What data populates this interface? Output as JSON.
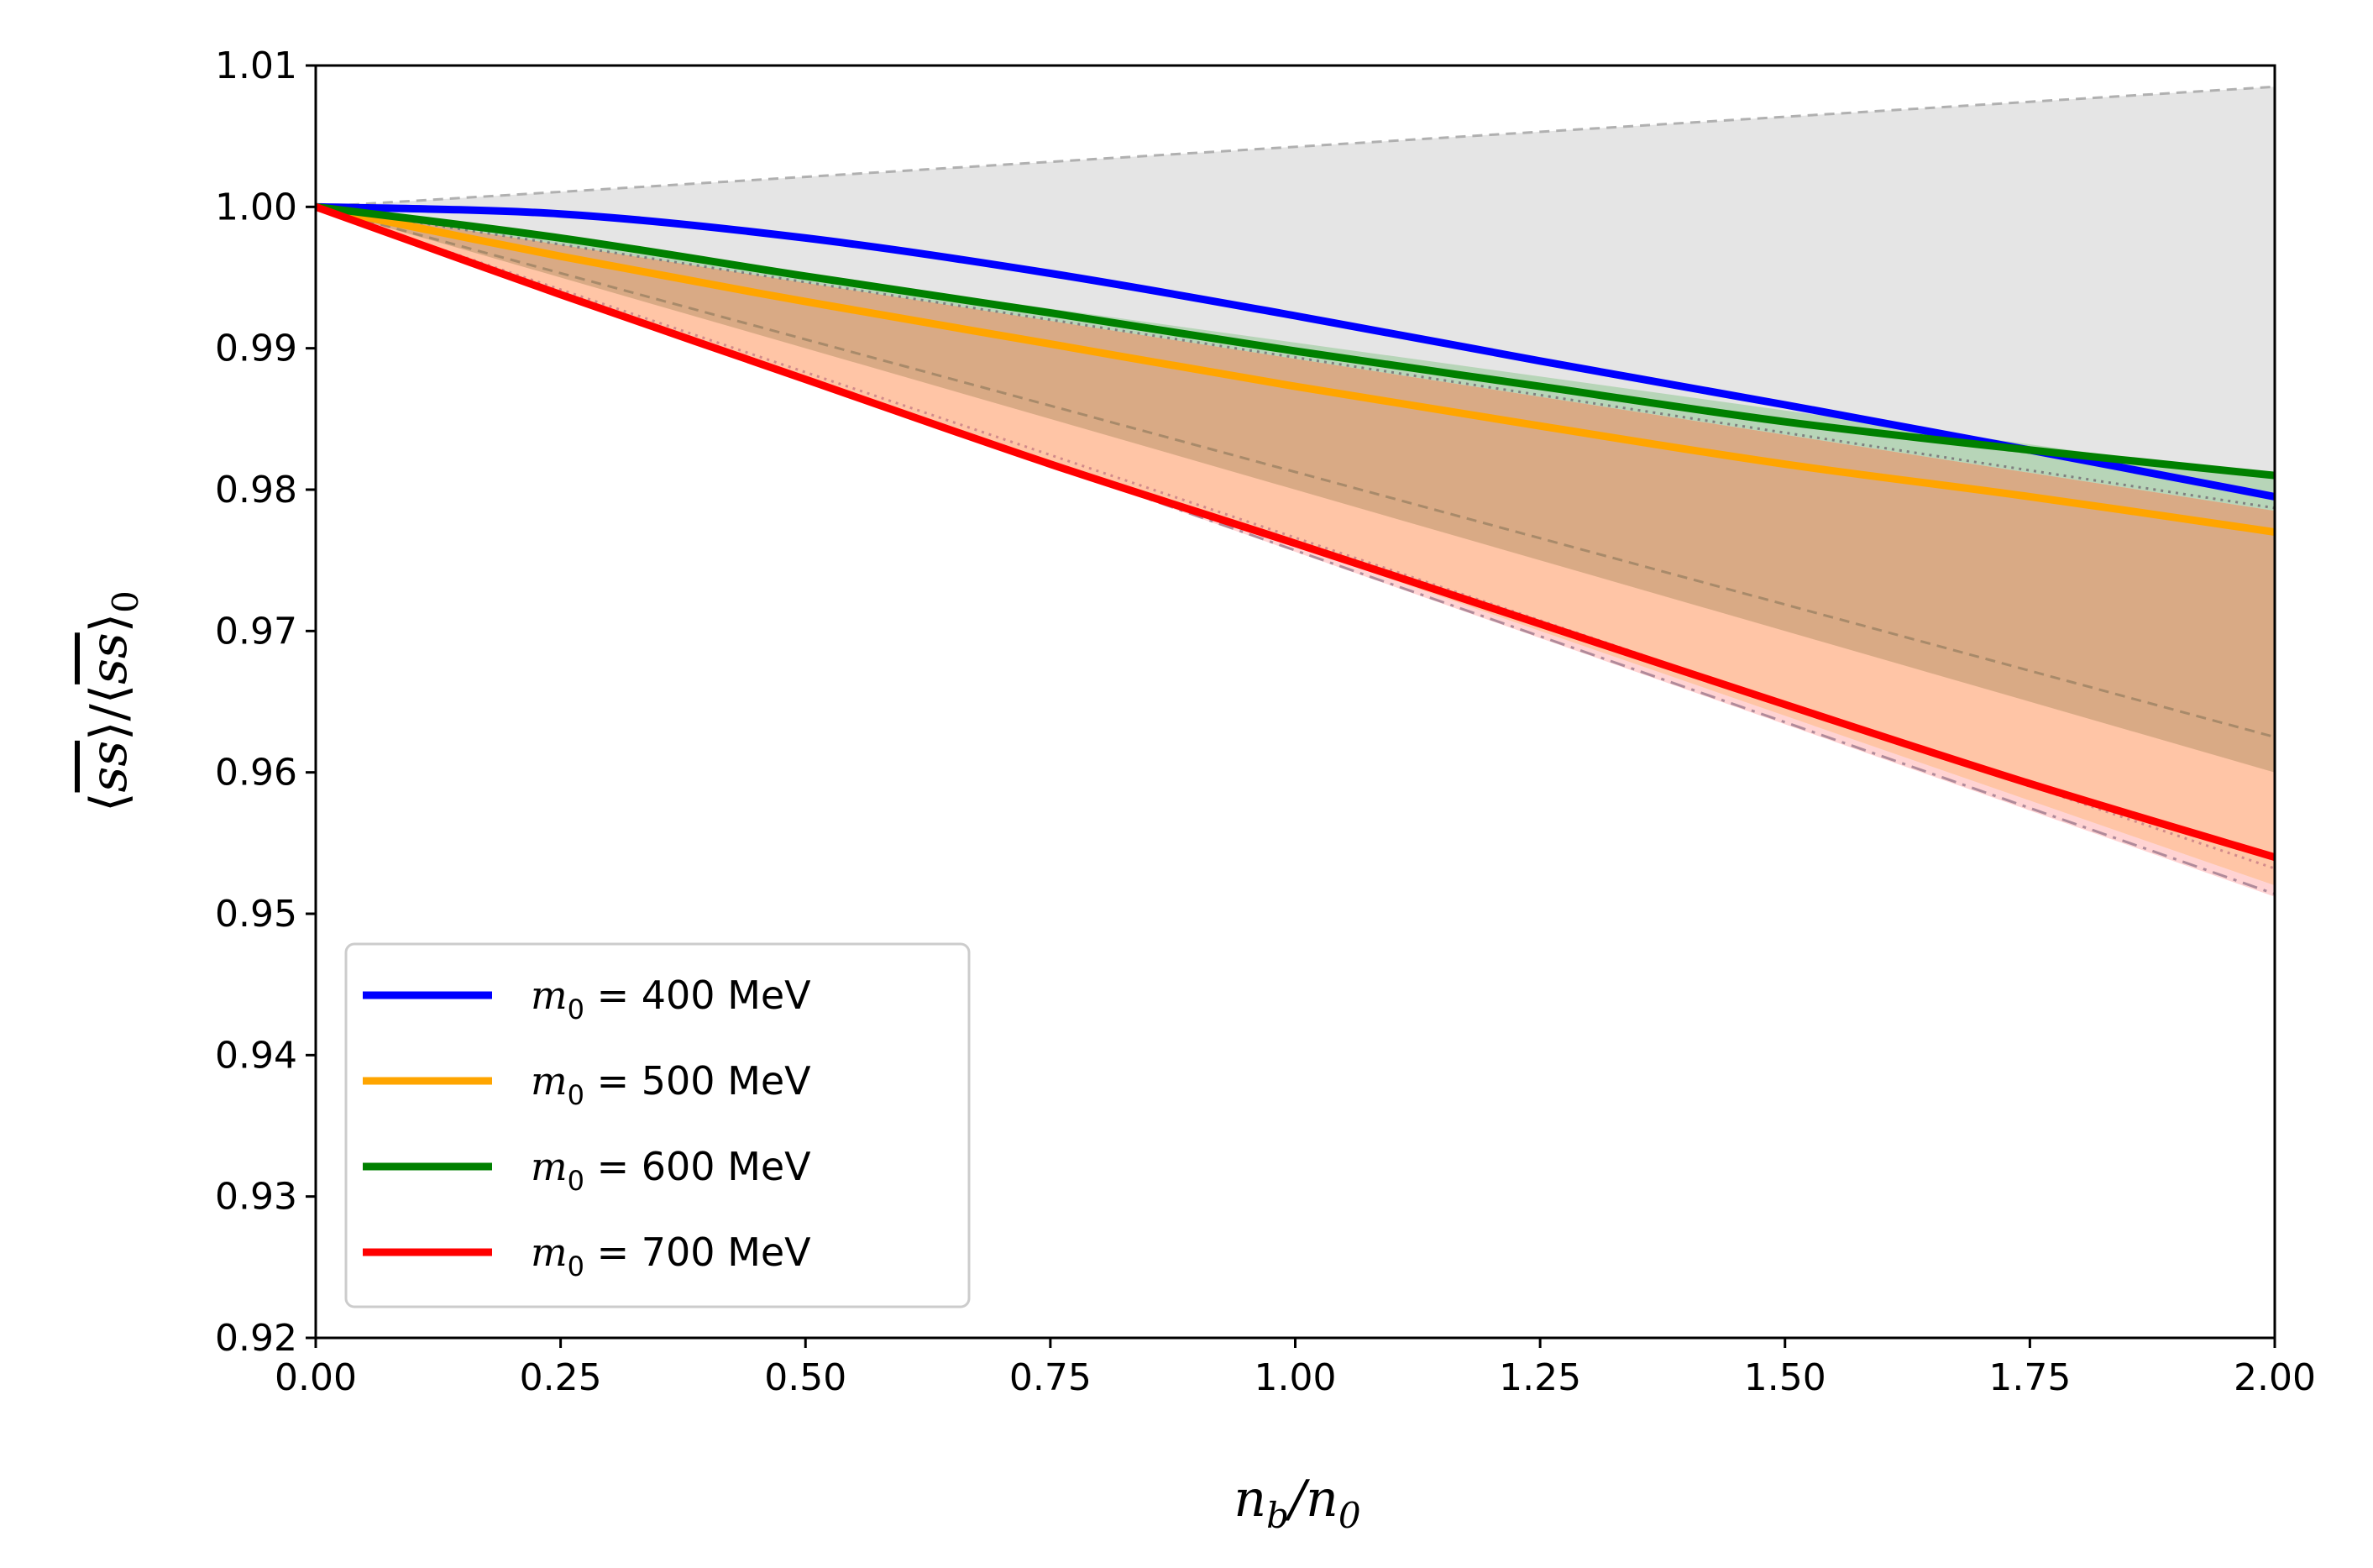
{
  "chart_data": {
    "type": "line",
    "xlabel": "n_b/n_0",
    "ylabel": "⟨s̄s⟩/⟨s̄s⟩_0",
    "xlim": [
      0.0,
      2.0
    ],
    "ylim": [
      0.92,
      1.01
    ],
    "xticks": [
      "0.00",
      "0.25",
      "0.50",
      "0.75",
      "1.00",
      "1.25",
      "1.50",
      "1.75",
      "2.00"
    ],
    "yticks": [
      "0.92",
      "0.93",
      "0.94",
      "0.95",
      "0.96",
      "0.97",
      "0.98",
      "0.99",
      "1.00",
      "1.01"
    ],
    "legend_position": "lower-left",
    "series": [
      {
        "name": "m₀ = 400 MeV",
        "label_prefix": "m",
        "label_sub": "0",
        "label_rest": " = 400 MeV",
        "color": "#0000ff",
        "x": [
          0,
          0.25,
          0.5,
          0.75,
          1.0,
          1.25,
          1.5,
          1.75,
          2.0
        ],
        "values": [
          1.0,
          0.9995,
          0.9978,
          0.9953,
          0.9923,
          0.9891,
          0.986,
          0.9828,
          0.9795
        ]
      },
      {
        "name": "m₀ = 500 MeV",
        "label_prefix": "m",
        "label_sub": "0",
        "label_rest": " = 500 MeV",
        "color": "#ffa500",
        "x": [
          0,
          0.25,
          0.5,
          0.75,
          1.0,
          1.25,
          1.5,
          1.75,
          2.0
        ],
        "values": [
          1.0,
          0.9965,
          0.9933,
          0.9903,
          0.9873,
          0.9845,
          0.9818,
          0.9795,
          0.977
        ]
      },
      {
        "name": "m₀ = 600 MeV",
        "label_prefix": "m",
        "label_sub": "0",
        "label_rest": " = 600 MeV",
        "color": "#008000",
        "x": [
          0,
          0.25,
          0.5,
          0.75,
          1.0,
          1.25,
          1.5,
          1.75,
          2.0
        ],
        "values": [
          1.0,
          0.9978,
          0.9951,
          0.9925,
          0.9898,
          0.9873,
          0.9848,
          0.9828,
          0.981
        ]
      },
      {
        "name": "m₀ = 700 MeV",
        "label_prefix": "m",
        "label_sub": "0",
        "label_rest": " = 700 MeV",
        "color": "#ff0000",
        "x": [
          0,
          0.25,
          0.5,
          0.75,
          1.0,
          1.25,
          1.5,
          1.75,
          2.0
        ],
        "values": [
          1.0,
          0.9938,
          0.9878,
          0.9818,
          0.9762,
          0.9705,
          0.9648,
          0.9592,
          0.954
        ]
      }
    ],
    "bands": [
      {
        "name": "grey band",
        "color": "#bdbdbd",
        "opacity": 0.4,
        "x": [
          0,
          2.0
        ],
        "upper": [
          1.0,
          1.0085
        ],
        "lower": [
          1.0,
          0.9785
        ]
      },
      {
        "name": "green band",
        "color": "#4caf50",
        "opacity": 0.3,
        "x": [
          0,
          2.0
        ],
        "upper": [
          1.0,
          0.9808
        ],
        "lower": [
          1.0,
          0.9785
        ]
      },
      {
        "name": "orange band",
        "color": "#ff9f6b",
        "opacity": 0.6,
        "x": [
          0,
          2.0
        ],
        "upper": [
          1.0,
          0.9785
        ],
        "lower": [
          1.0,
          0.952
        ]
      },
      {
        "name": "brown band",
        "color": "#b9936a",
        "opacity": 0.55,
        "x": [
          0,
          2.0
        ],
        "upper": [
          1.0,
          0.9785
        ],
        "lower": [
          1.0,
          0.96
        ]
      },
      {
        "name": "pink band",
        "color": "#ff8080",
        "opacity": 0.35,
        "x": [
          0,
          2.0
        ],
        "upper": [
          1.0,
          0.952
        ],
        "lower": [
          1.0,
          0.9512
        ]
      }
    ],
    "reference_lines": [
      {
        "name": "grey dashed upper",
        "color": "#b0b0b0",
        "style": "dashed",
        "x": [
          0,
          2.0
        ],
        "values": [
          1.0,
          1.0085
        ]
      },
      {
        "name": "grey dotted",
        "color": "#808080",
        "style": "dotted",
        "x": [
          0,
          2.0
        ],
        "values": [
          1.0,
          0.9787
        ]
      },
      {
        "name": "brown dashed",
        "color": "#a88a6a",
        "style": "dashed",
        "x": [
          0,
          2.0
        ],
        "values": [
          1.0,
          0.9625
        ]
      },
      {
        "name": "pink dotted",
        "color": "#d28a8a",
        "style": "dotted",
        "x": [
          0,
          2.0
        ],
        "values": [
          1.0,
          0.9532
        ]
      },
      {
        "name": "grey dashdot",
        "color": "#b08a9a",
        "style": "dashdot",
        "x": [
          0,
          2.0
        ],
        "values": [
          1.0,
          0.9514
        ]
      }
    ]
  }
}
